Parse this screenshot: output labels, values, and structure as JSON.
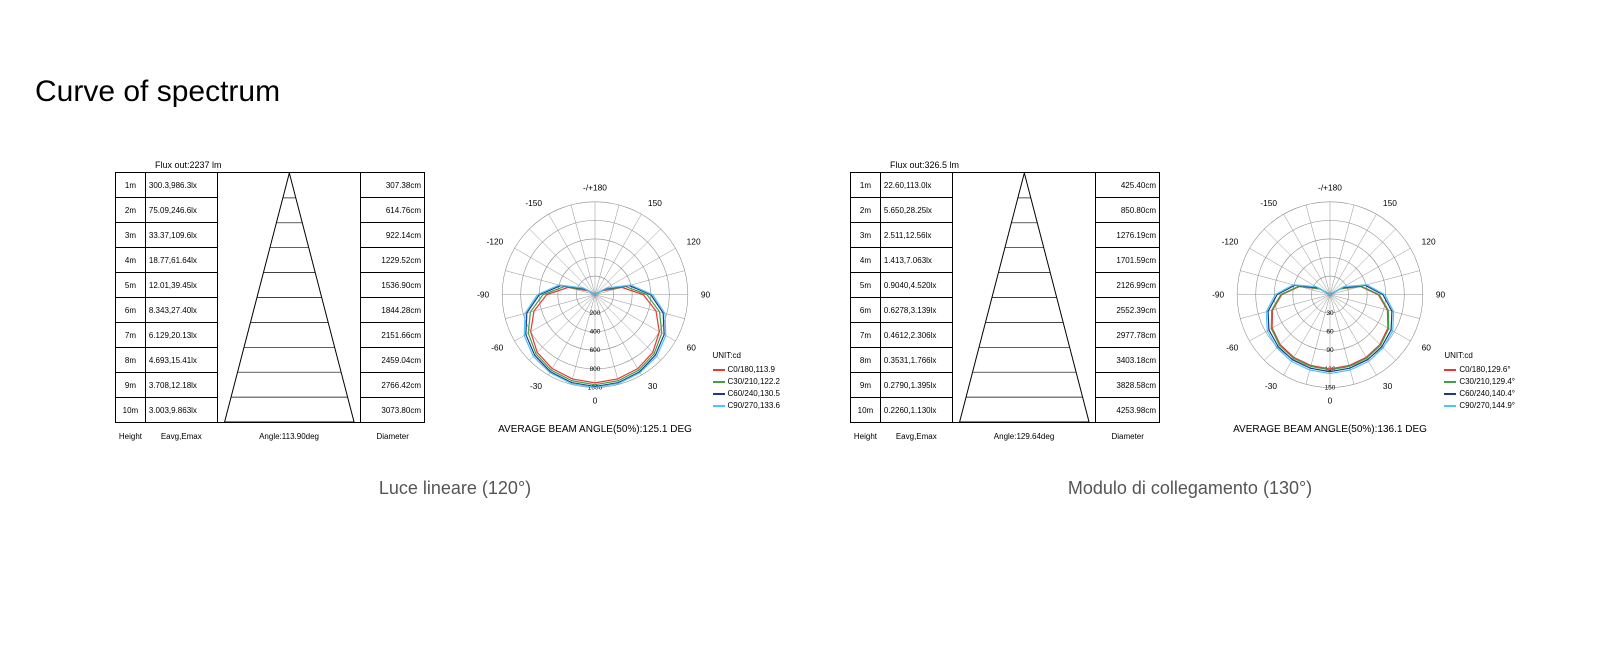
{
  "title": "Curve of spectrum",
  "panels": [
    {
      "subtitle": "Luce lineare (120°)",
      "flux_label": "Flux out:2237 lm",
      "cone": {
        "heights": [
          "1m",
          "2m",
          "3m",
          "4m",
          "5m",
          "6m",
          "7m",
          "8m",
          "9m",
          "10m"
        ],
        "eavg_emax": [
          "300.3,986.3lx",
          "75.09,246.6lx",
          "33.37,109.6lx",
          "18.77,61.64lx",
          "12.01,39.45lx",
          "8.343,27.40lx",
          "6.129,20.13lx",
          "4.693,15.41lx",
          "3.708,12.18lx",
          "3.003,9.863lx"
        ],
        "diameters": [
          "307.38cm",
          "614.76cm",
          "922.14cm",
          "1229.52cm",
          "1536.90cm",
          "1844.28cm",
          "2151.66cm",
          "2459.04cm",
          "2766.42cm",
          "3073.80cm"
        ],
        "angle_label": "Angle:113.90deg",
        "footer_height": "Height",
        "footer_eavg": "Eavg,Emax",
        "footer_diameter": "Diameter"
      },
      "polar": {
        "top_label": "-/+180",
        "angle_ticks": [
          -150,
          -120,
          -90,
          -60,
          -30,
          0,
          30,
          60,
          90,
          120,
          150
        ],
        "ring_labels": [
          "200",
          "400",
          "600",
          "800",
          "1000"
        ],
        "ring_count": 5,
        "spoke_count": 24,
        "caption": "AVERAGE BEAM ANGLE(50%):125.1 DEG",
        "legend_unit": "UNIT:cd",
        "series": [
          {
            "label": "C0/180,113.9",
            "color": "#e53935",
            "radii_by_angle": [
              0.95,
              0.94,
              0.92,
              0.88,
              0.8,
              0.68,
              0.52,
              0.3,
              0.08,
              0,
              0,
              0,
              0,
              0,
              0,
              0,
              0.08,
              0.3,
              0.52,
              0.68,
              0.8,
              0.88,
              0.92,
              0.94
            ]
          },
          {
            "label": "C30/210,122.2",
            "color": "#43a047",
            "radii_by_angle": [
              0.97,
              0.96,
              0.94,
              0.9,
              0.83,
              0.72,
              0.56,
              0.34,
              0.1,
              0,
              0,
              0,
              0,
              0,
              0,
              0,
              0.1,
              0.34,
              0.56,
              0.72,
              0.83,
              0.9,
              0.94,
              0.96
            ]
          },
          {
            "label": "C60/240,130.5",
            "color": "#1e3a8a",
            "radii_by_angle": [
              0.99,
              0.98,
              0.96,
              0.92,
              0.86,
              0.76,
              0.6,
              0.38,
              0.12,
              0,
              0,
              0,
              0,
              0,
              0,
              0,
              0.12,
              0.38,
              0.6,
              0.76,
              0.86,
              0.92,
              0.96,
              0.98
            ]
          },
          {
            "label": "C90/270,133.6",
            "color": "#4fc3f7",
            "radii_by_angle": [
              1.0,
              0.99,
              0.97,
              0.94,
              0.88,
              0.78,
              0.62,
              0.4,
              0.14,
              0,
              0,
              0,
              0,
              0,
              0,
              0,
              0.14,
              0.4,
              0.62,
              0.78,
              0.88,
              0.94,
              0.97,
              0.99
            ]
          }
        ]
      }
    },
    {
      "subtitle": "Modulo di collegamento (130°)",
      "flux_label": "Flux out:326.5 lm",
      "cone": {
        "heights": [
          "1m",
          "2m",
          "3m",
          "4m",
          "5m",
          "6m",
          "7m",
          "8m",
          "9m",
          "10m"
        ],
        "eavg_emax": [
          "22.60,113.0lx",
          "5.650,28.25lx",
          "2.511,12.56lx",
          "1.413,7.063lx",
          "0.9040,4.520lx",
          "0.6278,3.139lx",
          "0.4612,2.306lx",
          "0.3531,1.766lx",
          "0.2790,1.395lx",
          "0.2260,1.130lx"
        ],
        "diameters": [
          "425.40cm",
          "850.80cm",
          "1276.19cm",
          "1701.59cm",
          "2126.99cm",
          "2552.39cm",
          "2977.78cm",
          "3403.18cm",
          "3828.58cm",
          "4253.98cm"
        ],
        "angle_label": "Angle:129.64deg",
        "footer_height": "Height",
        "footer_eavg": "Eavg,Emax",
        "footer_diameter": "Diameter"
      },
      "polar": {
        "top_label": "-/+180",
        "angle_ticks": [
          -150,
          -120,
          -90,
          -60,
          -30,
          0,
          30,
          60,
          90,
          120,
          150
        ],
        "ring_labels": [
          "30",
          "60",
          "90",
          "120",
          "150"
        ],
        "ring_count": 5,
        "spoke_count": 24,
        "caption": "AVERAGE BEAM ANGLE(50%):136.1 DEG",
        "legend_unit": "UNIT:cd",
        "series": [
          {
            "label": "C0/180,129.6°",
            "color": "#e53935",
            "radii_by_angle": [
              0.8,
              0.79,
              0.78,
              0.76,
              0.72,
              0.64,
              0.52,
              0.34,
              0.12,
              0,
              0,
              0,
              0,
              0,
              0,
              0,
              0.12,
              0.34,
              0.52,
              0.64,
              0.72,
              0.76,
              0.78,
              0.79
            ]
          },
          {
            "label": "C30/210,129.4°",
            "color": "#43a047",
            "radii_by_angle": [
              0.81,
              0.8,
              0.79,
              0.77,
              0.73,
              0.65,
              0.53,
              0.35,
              0.13,
              0,
              0,
              0,
              0,
              0,
              0,
              0,
              0.13,
              0.35,
              0.53,
              0.65,
              0.73,
              0.77,
              0.79,
              0.8
            ]
          },
          {
            "label": "C60/240,140.4°",
            "color": "#1e3a8a",
            "radii_by_angle": [
              0.83,
              0.82,
              0.81,
              0.79,
              0.76,
              0.69,
              0.57,
              0.39,
              0.15,
              0,
              0,
              0,
              0,
              0,
              0,
              0,
              0.15,
              0.39,
              0.57,
              0.69,
              0.76,
              0.79,
              0.81,
              0.82
            ]
          },
          {
            "label": "C90/270,144.9°",
            "color": "#4fc3f7",
            "radii_by_angle": [
              0.85,
              0.84,
              0.83,
              0.81,
              0.78,
              0.71,
              0.59,
              0.41,
              0.17,
              0,
              0,
              0,
              0,
              0,
              0,
              0,
              0.17,
              0.41,
              0.59,
              0.71,
              0.78,
              0.81,
              0.83,
              0.84
            ]
          }
        ]
      }
    }
  ],
  "colors": {
    "grid": "#888888",
    "text": "#000000",
    "bg": "#ffffff"
  }
}
